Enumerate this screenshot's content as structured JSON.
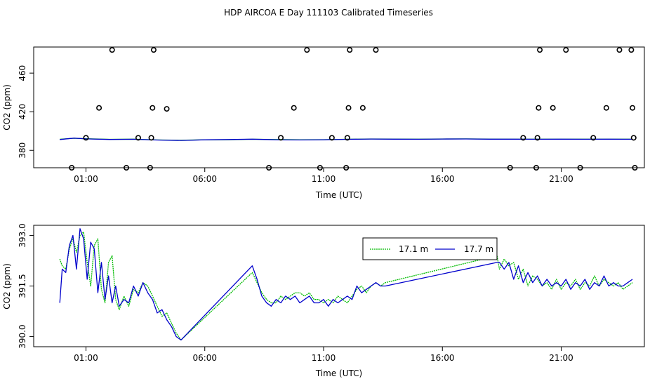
{
  "title": "HDP AIRCOA E  Day 111103  Calibrated Timeseries",
  "colors": {
    "green": "#00bb00",
    "blue": "#0000cc"
  },
  "chart_data": [
    {
      "type": "scatter",
      "xlabel": "Time (UTC)",
      "ylabel": "CO2 (ppm)",
      "x_unit": "hours UTC",
      "xlim": [
        -1.2,
        24.5
      ],
      "ylim": [
        362,
        487
      ],
      "xticks": [
        1,
        6,
        11,
        16,
        21
      ],
      "xtick_labels": [
        "01:00",
        "06:00",
        "11:00",
        "16:00",
        "21:00"
      ],
      "yticks": [
        380,
        420,
        460
      ],
      "ytick_labels": [
        "380",
        "420",
        "460"
      ],
      "points": [
        {
          "x": 0.4,
          "y": 362
        },
        {
          "x": 1.0,
          "y": 393
        },
        {
          "x": 1.55,
          "y": 424
        },
        {
          "x": 2.1,
          "y": 484
        },
        {
          "x": 2.7,
          "y": 362
        },
        {
          "x": 3.2,
          "y": 393
        },
        {
          "x": 3.7,
          "y": 362
        },
        {
          "x": 3.75,
          "y": 393
        },
        {
          "x": 3.8,
          "y": 424
        },
        {
          "x": 3.85,
          "y": 484
        },
        {
          "x": 4.4,
          "y": 423
        },
        {
          "x": 8.7,
          "y": 362
        },
        {
          "x": 9.2,
          "y": 393
        },
        {
          "x": 9.75,
          "y": 424
        },
        {
          "x": 10.3,
          "y": 484
        },
        {
          "x": 10.85,
          "y": 362
        },
        {
          "x": 11.35,
          "y": 393
        },
        {
          "x": 11.95,
          "y": 362
        },
        {
          "x": 12.0,
          "y": 393
        },
        {
          "x": 12.05,
          "y": 424
        },
        {
          "x": 12.1,
          "y": 484
        },
        {
          "x": 12.65,
          "y": 424
        },
        {
          "x": 13.2,
          "y": 484
        },
        {
          "x": 18.85,
          "y": 362
        },
        {
          "x": 19.4,
          "y": 393
        },
        {
          "x": 19.95,
          "y": 362
        },
        {
          "x": 20.0,
          "y": 393
        },
        {
          "x": 20.05,
          "y": 424
        },
        {
          "x": 20.1,
          "y": 484
        },
        {
          "x": 20.65,
          "y": 424
        },
        {
          "x": 21.2,
          "y": 484
        },
        {
          "x": 21.8,
          "y": 362
        },
        {
          "x": 22.35,
          "y": 393
        },
        {
          "x": 22.9,
          "y": 424
        },
        {
          "x": 23.45,
          "y": 484
        },
        {
          "x": 23.95,
          "y": 484
        },
        {
          "x": 24.0,
          "y": 424
        },
        {
          "x": 24.05,
          "y": 393
        },
        {
          "x": 24.1,
          "y": 362
        }
      ],
      "series": [
        {
          "color": "#00bb00",
          "x": [
            -0.1,
            0.5,
            1.0,
            2.0,
            3.0,
            4.0,
            5.0,
            6.0,
            7.0,
            8.0,
            9.0,
            10.0,
            11.0,
            12.0,
            13.0,
            14.0,
            15.0,
            16.0,
            17.0,
            18.0,
            19.0,
            20.0,
            21.0,
            22.0,
            23.0,
            24.0
          ],
          "y": [
            391.5,
            392.5,
            392.0,
            391.4,
            391.6,
            390.8,
            390.5,
            390.9,
            391.0,
            391.5,
            391.2,
            391.0,
            391.1,
            391.5,
            391.8,
            391.7,
            391.6,
            391.8,
            391.9,
            391.7,
            391.6,
            391.6,
            391.6,
            391.6,
            391.6,
            391.6
          ]
        },
        {
          "color": "#0000cc",
          "x": [
            -0.1,
            0.5,
            1.0,
            2.0,
            3.0,
            4.0,
            5.0,
            6.0,
            7.0,
            8.0,
            9.0,
            10.0,
            11.0,
            12.0,
            13.0,
            14.0,
            15.0,
            16.0,
            17.0,
            18.0,
            19.0,
            20.0,
            21.0,
            22.0,
            23.0,
            24.0
          ],
          "y": [
            391.2,
            392.7,
            391.9,
            391.3,
            391.5,
            390.7,
            390.3,
            390.9,
            391.2,
            391.6,
            391.0,
            390.8,
            391.0,
            391.4,
            391.7,
            391.6,
            391.5,
            391.7,
            391.8,
            391.6,
            391.6,
            391.5,
            391.6,
            391.5,
            391.6,
            391.5
          ]
        }
      ]
    },
    {
      "type": "line",
      "xlabel": "Time (UTC)",
      "ylabel": "CO2 (ppm)",
      "x_unit": "hours UTC",
      "xlim": [
        -1.2,
        24.5
      ],
      "ylim": [
        389.7,
        393.3
      ],
      "xticks": [
        1,
        6,
        11,
        16,
        21
      ],
      "xtick_labels": [
        "01:00",
        "06:00",
        "11:00",
        "16:00",
        "21:00"
      ],
      "yticks": [
        390.0,
        391.5,
        393.0
      ],
      "ytick_labels": [
        "390.0",
        "391.5",
        "393.0"
      ],
      "legend": {
        "position": "top-right"
      },
      "series": [
        {
          "name": "17.1 m",
          "color": "#00bb00",
          "x": [
            -0.1,
            0.0,
            0.15,
            0.3,
            0.45,
            0.6,
            0.75,
            0.9,
            1.05,
            1.2,
            1.35,
            1.5,
            1.65,
            1.8,
            1.95,
            2.1,
            2.25,
            2.4,
            2.6,
            2.8,
            3.0,
            3.2,
            3.4,
            3.6,
            3.8,
            4.0,
            4.2,
            4.4,
            4.6,
            4.8,
            5.0,
            8.0,
            8.2,
            8.4,
            8.6,
            8.8,
            9.0,
            9.2,
            9.4,
            9.6,
            9.8,
            10.0,
            10.2,
            10.4,
            10.6,
            10.8,
            11.0,
            11.2,
            11.4,
            11.6,
            11.8,
            12.0,
            12.2,
            12.4,
            12.6,
            12.8,
            13.0,
            13.2,
            13.4,
            13.6,
            18.3,
            18.4,
            18.6,
            18.8,
            19.0,
            19.2,
            19.4,
            19.6,
            19.8,
            20.0,
            20.2,
            20.4,
            20.6,
            20.8,
            21.0,
            21.2,
            21.4,
            21.6,
            21.8,
            22.0,
            22.2,
            22.4,
            22.6,
            22.8,
            23.0,
            23.2,
            23.4,
            23.6,
            23.8,
            24.0
          ],
          "y": [
            392.3,
            392.1,
            392.0,
            392.6,
            392.9,
            392.5,
            393.0,
            393.1,
            392.2,
            391.5,
            392.7,
            392.9,
            391.4,
            391.0,
            392.2,
            392.4,
            391.1,
            390.8,
            391.2,
            390.9,
            391.4,
            391.3,
            391.6,
            391.5,
            391.2,
            390.9,
            390.6,
            390.7,
            390.4,
            390.1,
            389.9,
            391.9,
            391.6,
            391.3,
            391.1,
            391.0,
            391.0,
            391.2,
            391.1,
            391.2,
            391.3,
            391.3,
            391.2,
            391.3,
            391.1,
            391.1,
            391.0,
            391.1,
            391.0,
            391.2,
            391.1,
            391.0,
            391.2,
            391.4,
            391.5,
            391.3,
            391.5,
            391.6,
            391.5,
            391.6,
            392.4,
            392.0,
            392.3,
            392.1,
            392.2,
            391.7,
            392.0,
            391.5,
            391.8,
            391.7,
            391.5,
            391.6,
            391.4,
            391.7,
            391.4,
            391.6,
            391.5,
            391.7,
            391.4,
            391.6,
            391.5,
            391.8,
            391.5,
            391.7,
            391.6,
            391.5,
            391.6,
            391.4,
            391.5,
            391.6
          ]
        },
        {
          "name": "17.7 m",
          "color": "#0000cc",
          "x": [
            -0.1,
            0.0,
            0.15,
            0.3,
            0.45,
            0.6,
            0.75,
            0.9,
            1.05,
            1.2,
            1.35,
            1.5,
            1.65,
            1.8,
            1.95,
            2.1,
            2.25,
            2.4,
            2.6,
            2.8,
            3.0,
            3.2,
            3.4,
            3.6,
            3.8,
            4.0,
            4.2,
            4.4,
            4.6,
            4.8,
            5.0,
            8.0,
            8.2,
            8.4,
            8.6,
            8.8,
            9.0,
            9.2,
            9.4,
            9.6,
            9.8,
            10.0,
            10.2,
            10.4,
            10.6,
            10.8,
            11.0,
            11.2,
            11.4,
            11.6,
            11.8,
            12.0,
            12.2,
            12.4,
            12.6,
            12.8,
            13.0,
            13.2,
            13.4,
            13.6,
            18.3,
            18.4,
            18.6,
            18.8,
            19.0,
            19.2,
            19.4,
            19.6,
            19.8,
            20.0,
            20.2,
            20.4,
            20.6,
            20.8,
            21.0,
            21.2,
            21.4,
            21.6,
            21.8,
            22.0,
            22.2,
            22.4,
            22.6,
            22.8,
            23.0,
            23.2,
            23.4,
            23.6,
            23.8,
            24.0
          ],
          "y": [
            391.0,
            392.0,
            391.9,
            392.7,
            393.0,
            392.0,
            393.2,
            392.9,
            391.7,
            392.8,
            392.6,
            391.3,
            392.2,
            391.1,
            391.8,
            391.0,
            391.5,
            390.9,
            391.1,
            391.0,
            391.5,
            391.2,
            391.6,
            391.3,
            391.1,
            390.7,
            390.8,
            390.5,
            390.3,
            390.0,
            389.9,
            392.1,
            391.7,
            391.2,
            391.0,
            390.9,
            391.1,
            391.0,
            391.2,
            391.1,
            391.2,
            391.0,
            391.1,
            391.2,
            391.0,
            391.0,
            391.1,
            390.9,
            391.1,
            391.0,
            391.1,
            391.2,
            391.1,
            391.5,
            391.3,
            391.4,
            391.5,
            391.6,
            391.5,
            391.5,
            392.2,
            392.2,
            392.0,
            392.2,
            391.7,
            392.1,
            391.6,
            391.9,
            391.6,
            391.8,
            391.5,
            391.7,
            391.5,
            391.6,
            391.5,
            391.7,
            391.4,
            391.6,
            391.5,
            391.7,
            391.4,
            391.6,
            391.5,
            391.8,
            391.5,
            391.6,
            391.5,
            391.5,
            391.6,
            391.7
          ]
        }
      ]
    }
  ]
}
